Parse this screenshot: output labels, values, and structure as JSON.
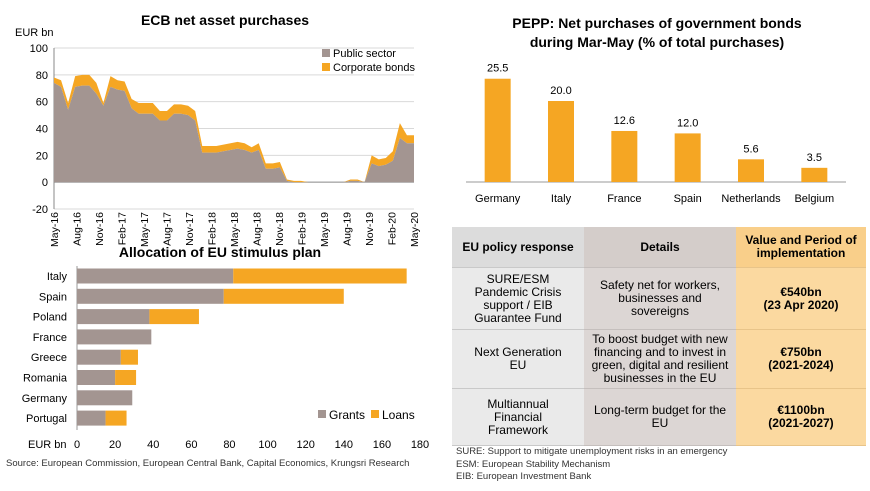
{
  "chart_data": [
    {
      "type": "area",
      "title": "ECB net asset purchases",
      "ylabel": "EUR bn",
      "ylim": [
        -20,
        100
      ],
      "yticks": [
        -20,
        0,
        20,
        40,
        60,
        80,
        100
      ],
      "xlabel": "",
      "tick_labels": [
        "May-16",
        "Aug-16",
        "Nov-16",
        "Feb-17",
        "May-17",
        "Aug-17",
        "Nov-17",
        "Feb-18",
        "May-18",
        "Aug-18",
        "Nov-18",
        "Feb-19",
        "May-19",
        "Aug-19",
        "Nov-19",
        "Feb-20",
        "May-20"
      ],
      "legend_position": "top-right",
      "series": [
        {
          "name": "Public sector",
          "color": "#a39591",
          "values": [
            74,
            71,
            54,
            71,
            72,
            72,
            66,
            57,
            71,
            69,
            68,
            55,
            51,
            51,
            51,
            46,
            46,
            51,
            51,
            50,
            46,
            22,
            22,
            22,
            23,
            24,
            25,
            24,
            22,
            24,
            10,
            10,
            11,
            1,
            0,
            0,
            0,
            0,
            0,
            0,
            0,
            0,
            1,
            1,
            0,
            14,
            12,
            13,
            16,
            33,
            29,
            29
          ]
        },
        {
          "name": "Corporate bonds",
          "color": "#f5a623",
          "values": [
            4,
            5,
            5,
            8,
            8,
            8,
            8,
            2,
            8,
            7,
            7,
            7,
            8,
            8,
            8,
            7,
            7,
            7,
            7,
            7,
            7,
            5,
            5,
            5,
            5,
            5,
            5,
            5,
            4,
            5,
            4,
            4,
            4,
            1,
            1,
            1,
            0,
            0,
            0,
            0,
            0,
            0,
            1,
            1,
            0,
            6,
            5,
            5,
            7,
            11,
            6,
            6
          ]
        }
      ]
    },
    {
      "type": "bar",
      "title": "PEPP: Net purchases of government bonds during Mar-May (% of total purchases)",
      "title_line1": "PEPP: Net purchases of government bonds",
      "title_line2": "during Mar-May (% of total purchases)",
      "categories": [
        "Germany",
        "Italy",
        "France",
        "Spain",
        "Netherlands",
        "Belgium"
      ],
      "values": [
        25.5,
        20.0,
        12.6,
        12.0,
        5.6,
        3.5
      ],
      "value_labels": [
        "25.5",
        "20.0",
        "12.6",
        "12.0",
        "5.6",
        "3.5"
      ],
      "ylim": [
        0,
        30
      ],
      "color": "#f5a623"
    },
    {
      "type": "bar",
      "orientation": "horizontal",
      "stacked": true,
      "title": "Allocation of EU stimulus plan",
      "xlabel": "EUR bn",
      "xlim": [
        0,
        180
      ],
      "xticks": [
        0,
        20,
        40,
        60,
        80,
        100,
        120,
        140,
        160,
        180
      ],
      "categories": [
        "Italy",
        "Spain",
        "Poland",
        "France",
        "Greece",
        "Romania",
        "Germany",
        "Portugal"
      ],
      "legend_position": "bottom-right",
      "series": [
        {
          "name": "Grants",
          "color": "#a39591",
          "values": [
            82,
            77,
            38,
            39,
            23,
            20,
            29,
            15
          ]
        },
        {
          "name": "Loans",
          "color": "#f5a623",
          "values": [
            91,
            63,
            26,
            0,
            9,
            11,
            0,
            11
          ]
        }
      ]
    }
  ],
  "table": {
    "headers": [
      "EU policy response",
      "Details",
      "Value and Period of implementation"
    ],
    "rows": [
      {
        "response": [
          "SURE/ESM",
          "Pandemic Crisis",
          "support / EIB",
          "Guarantee Fund"
        ],
        "details": [
          "Safety net for workers,",
          "businesses and sovereigns"
        ],
        "value": [
          "€540bn",
          "(23 Apr 2020)"
        ]
      },
      {
        "response": [
          "Next Generation",
          "EU"
        ],
        "details": [
          "To boost budget with new",
          "financing and to invest in",
          "green, digital and resilient",
          "businesses in the EU"
        ],
        "value": [
          "€750bn",
          "(2021-2024)"
        ]
      },
      {
        "response": [
          "Multiannual",
          "Financial",
          "Framework"
        ],
        "details": [
          "Long-term budget for the",
          "EU"
        ],
        "value": [
          "€1100bn",
          "(2021-2027)"
        ]
      }
    ]
  },
  "footnotes": [
    "SURE: Support to mitigate unemployment risks in an emergency",
    "ESM: European Stability Mechanism",
    "EIB: European Investment Bank"
  ],
  "source": "Source: European Commission, European Central Bank, Capital Economics, Krungsri Research"
}
